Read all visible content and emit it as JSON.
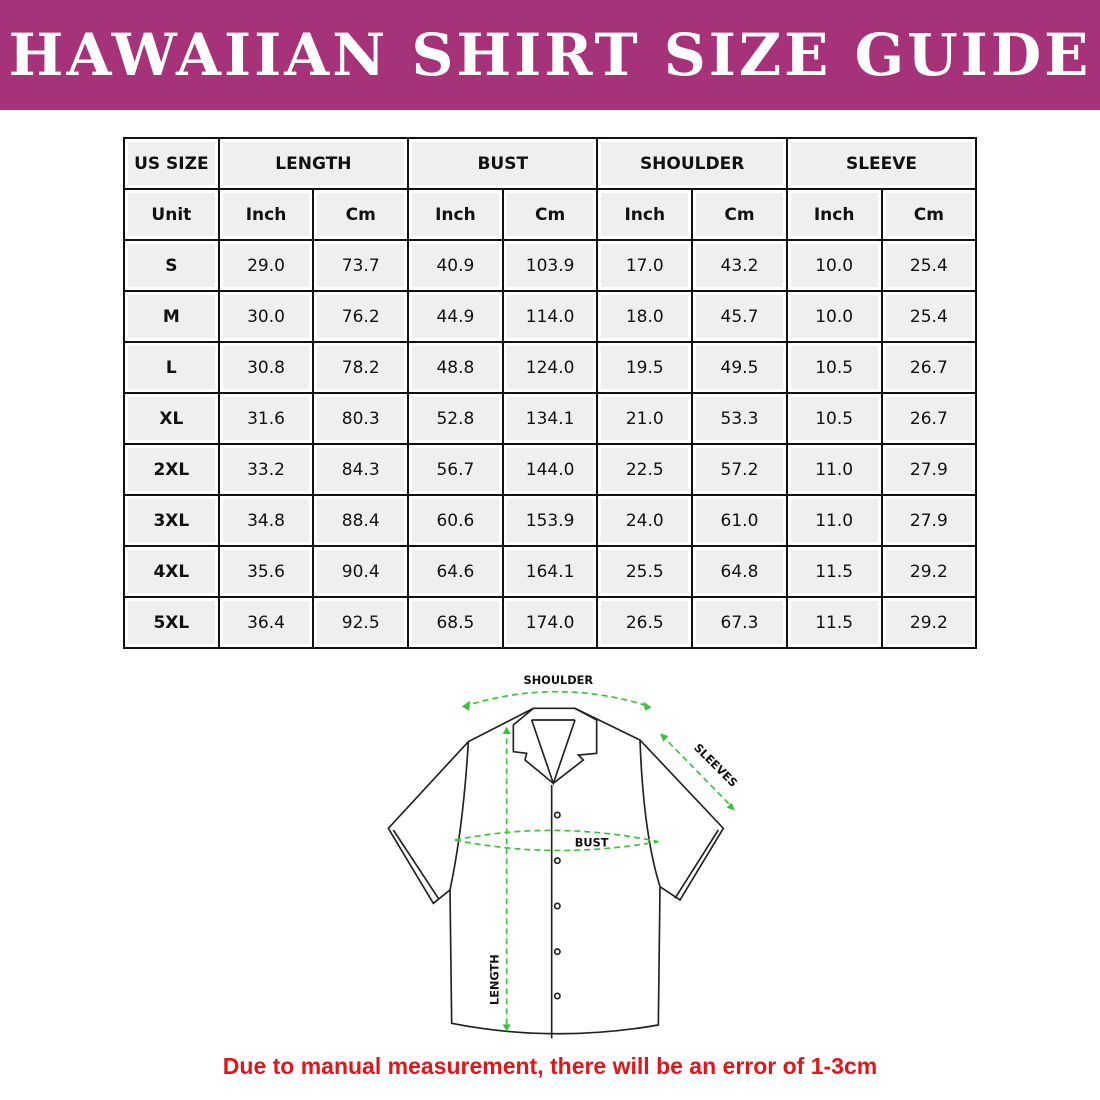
{
  "title": "Hawaiian Shirt Size Guide",
  "table": {
    "groups": [
      "US SIZE",
      "LENGTH",
      "BUST",
      "SHOULDER",
      "SLEEVE"
    ],
    "units": [
      "Unit",
      "Inch",
      "Cm",
      "Inch",
      "Cm",
      "Inch",
      "Cm",
      "Inch",
      "Cm"
    ],
    "rows": [
      [
        "S",
        "29.0",
        "73.7",
        "40.9",
        "103.9",
        "17.0",
        "43.2",
        "10.0",
        "25.4"
      ],
      [
        "M",
        "30.0",
        "76.2",
        "44.9",
        "114.0",
        "18.0",
        "45.7",
        "10.0",
        "25.4"
      ],
      [
        "L",
        "30.8",
        "78.2",
        "48.8",
        "124.0",
        "19.5",
        "49.5",
        "10.5",
        "26.7"
      ],
      [
        "XL",
        "31.6",
        "80.3",
        "52.8",
        "134.1",
        "21.0",
        "53.3",
        "10.5",
        "26.7"
      ],
      [
        "2XL",
        "33.2",
        "84.3",
        "56.7",
        "144.0",
        "22.5",
        "57.2",
        "11.0",
        "27.9"
      ],
      [
        "3XL",
        "34.8",
        "88.4",
        "60.6",
        "153.9",
        "24.0",
        "61.0",
        "11.0",
        "27.9"
      ],
      [
        "4XL",
        "35.6",
        "90.4",
        "64.6",
        "164.1",
        "25.5",
        "64.8",
        "11.5",
        "29.2"
      ],
      [
        "5XL",
        "36.4",
        "92.5",
        "68.5",
        "174.0",
        "26.5",
        "67.3",
        "11.5",
        "29.2"
      ]
    ]
  },
  "diagram": {
    "shoulder": "SHOULDER",
    "sleeves": "SLEEVES",
    "bust": "BUST",
    "length": "LENGTH",
    "arrow_color": "#3cc13c"
  },
  "note": "Due to manual measurement, there will be an error of 1-3cm",
  "colors": {
    "banner": "#a6327a",
    "note": "#e0161b"
  }
}
